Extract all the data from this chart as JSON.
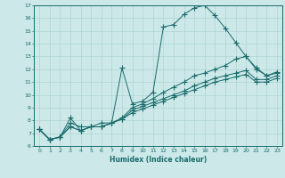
{
  "xlabel": "Humidex (Indice chaleur)",
  "bg_color": "#cce8e8",
  "line_color": "#1a6b6b",
  "grid_color": "#b0d4d4",
  "xlim": [
    -0.5,
    23.5
  ],
  "ylim": [
    6,
    17
  ],
  "xticks": [
    0,
    1,
    2,
    3,
    4,
    5,
    6,
    7,
    8,
    9,
    10,
    11,
    12,
    13,
    14,
    15,
    16,
    17,
    18,
    19,
    20,
    21,
    22,
    23
  ],
  "yticks": [
    6,
    7,
    8,
    9,
    10,
    11,
    12,
    13,
    14,
    15,
    16,
    17
  ],
  "lines": [
    {
      "x": [
        0,
        1,
        2,
        3,
        4,
        5,
        6,
        7,
        8,
        9,
        10,
        11,
        12,
        13,
        14,
        15,
        16,
        17,
        18,
        19,
        20,
        21,
        22,
        23
      ],
      "y": [
        7.3,
        6.5,
        6.7,
        8.2,
        7.2,
        7.5,
        7.5,
        7.8,
        12.1,
        9.3,
        9.5,
        10.2,
        15.3,
        15.5,
        16.3,
        16.8,
        17.0,
        16.2,
        15.2,
        14.1,
        13.0,
        12.1,
        11.5,
        11.7
      ]
    },
    {
      "x": [
        0,
        1,
        2,
        3,
        4,
        5,
        6,
        7,
        8,
        9,
        10,
        11,
        12,
        13,
        14,
        15,
        16,
        17,
        18,
        19,
        20,
        21,
        22,
        23
      ],
      "y": [
        7.3,
        6.5,
        6.7,
        7.8,
        7.5,
        7.5,
        7.8,
        7.8,
        8.2,
        9.0,
        9.3,
        9.7,
        10.2,
        10.6,
        11.0,
        11.5,
        11.7,
        12.0,
        12.3,
        12.8,
        13.0,
        12.0,
        11.5,
        11.8
      ]
    },
    {
      "x": [
        0,
        1,
        2,
        3,
        4,
        5,
        6,
        7,
        8,
        9,
        10,
        11,
        12,
        13,
        14,
        15,
        16,
        17,
        18,
        19,
        20,
        21,
        22,
        23
      ],
      "y": [
        7.3,
        6.5,
        6.7,
        7.5,
        7.2,
        7.5,
        7.5,
        7.8,
        8.1,
        8.8,
        9.1,
        9.4,
        9.7,
        10.0,
        10.3,
        10.7,
        11.0,
        11.3,
        11.5,
        11.7,
        11.9,
        11.2,
        11.2,
        11.5
      ]
    },
    {
      "x": [
        0,
        1,
        2,
        3,
        4,
        5,
        6,
        7,
        8,
        9,
        10,
        11,
        12,
        13,
        14,
        15,
        16,
        17,
        18,
        19,
        20,
        21,
        22,
        23
      ],
      "y": [
        7.3,
        6.5,
        6.7,
        7.5,
        7.2,
        7.5,
        7.5,
        7.8,
        8.1,
        8.6,
        8.9,
        9.2,
        9.5,
        9.8,
        10.1,
        10.4,
        10.7,
        11.0,
        11.2,
        11.4,
        11.6,
        11.0,
        11.0,
        11.3
      ]
    }
  ]
}
